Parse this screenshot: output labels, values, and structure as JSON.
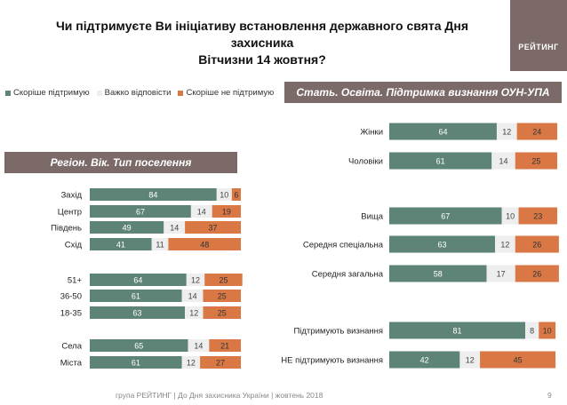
{
  "title_line1": "Чи підтримуєте Ви ініціативу встановлення державного свята Дня захисника",
  "title_line2": "Вітчизни 14 жовтня?",
  "logo": "РЕЙТИНГ",
  "legend": [
    {
      "label": "Скоріше підтримую",
      "color": "#5e8478"
    },
    {
      "label": "Важко відповісти",
      "color": "#eeeeee"
    },
    {
      "label": "Скоріше не підтримую",
      "color": "#d97845"
    }
  ],
  "left_section_title": "Регіон. Вік. Тип поселення",
  "right_section_title": "Стать. Освіта. Підтримка визнання ОУН-УПА",
  "footer": "група РЕЙТИНГ | До Дня захисника України | жовтень 2018",
  "page_number": "9",
  "chart_data": [
    {
      "type": "bar",
      "orientation": "horizontal",
      "stacked": true,
      "categories": [
        "Захід",
        "Центр",
        "Південь",
        "Схід",
        "51+",
        "36-50",
        "18-35",
        "Села",
        "Міста"
      ],
      "series": [
        {
          "name": "Скоріше підтримую",
          "values": [
            84,
            67,
            49,
            41,
            64,
            61,
            63,
            65,
            61
          ]
        },
        {
          "name": "Важко відповісти",
          "values": [
            10,
            14,
            14,
            11,
            12,
            14,
            12,
            14,
            12
          ]
        },
        {
          "name": "Скоріше не підтримую",
          "values": [
            6,
            19,
            37,
            48,
            25,
            25,
            25,
            21,
            27
          ]
        }
      ]
    },
    {
      "type": "bar",
      "orientation": "horizontal",
      "stacked": true,
      "categories": [
        "Жінки",
        "Чоловіки",
        "Вища",
        "Середня спеціальна",
        "Середня загальна",
        "Підтримують визнання",
        "НЕ підтримують визнання"
      ],
      "series": [
        {
          "name": "Скоріше підтримую",
          "values": [
            64,
            61,
            67,
            63,
            58,
            81,
            42
          ]
        },
        {
          "name": "Важко відповісти",
          "values": [
            12,
            14,
            10,
            12,
            17,
            8,
            12
          ]
        },
        {
          "name": "Скоріше не підтримую",
          "values": [
            24,
            25,
            23,
            26,
            26,
            10,
            45
          ]
        }
      ]
    }
  ]
}
